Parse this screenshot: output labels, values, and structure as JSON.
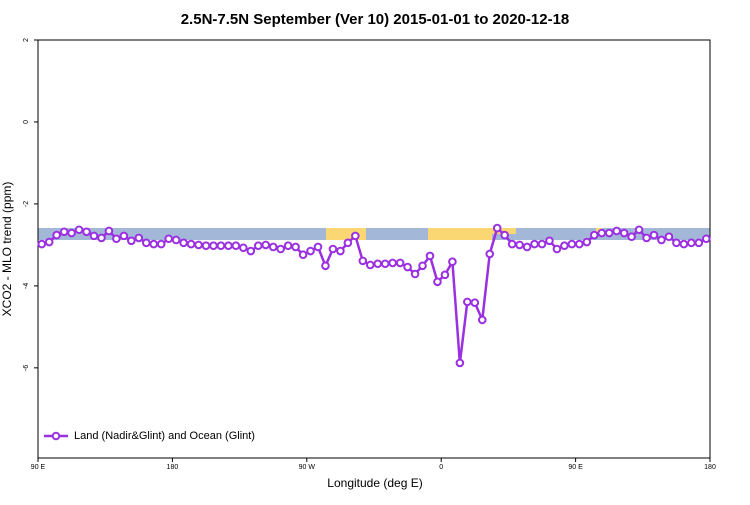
{
  "chart_data": {
    "type": "line",
    "title": "2.5N-7.5N September (Ver 10)   2015-01-01 to 2020-12-18",
    "x_label": "Longitude (deg E)",
    "y_label": "XCO2 - MLO trend (ppm)",
    "x": [
      92.5,
      97.5,
      102.5,
      107.5,
      112.5,
      117.5,
      122.5,
      127.5,
      132.5,
      137.5,
      142.5,
      147.5,
      152.5,
      157.5,
      162.5,
      167.5,
      172.5,
      177.5,
      182.5,
      187.5,
      192.5,
      197.5,
      202.5,
      207.5,
      212.5,
      217.5,
      222.5,
      227.5,
      232.5,
      237.5,
      242.5,
      247.5,
      252.5,
      257.5,
      262.5,
      267.5,
      272.5,
      277.5,
      282.5,
      287.5,
      292.5,
      297.5,
      302.5,
      307.5,
      312.5,
      317.5,
      322.5,
      327.5,
      332.5,
      337.5,
      342.5,
      347.5,
      352.5,
      357.5,
      362.5,
      367.5,
      372.5,
      377.5,
      382.5,
      387.5,
      392.5,
      397.5,
      402.5,
      407.5,
      412.5,
      417.5,
      422.5,
      427.5,
      432.5,
      437.5,
      442.5,
      447.5,
      452.5,
      457.5,
      462.5,
      467.5,
      472.5,
      477.5,
      482.5,
      487.5,
      492.5,
      497.5,
      502.5,
      507.5,
      512.5,
      517.5,
      522.5,
      527.5,
      532.5,
      537.5
    ],
    "series": [
      {
        "name": "Land (Nadir&Glint) and Ocean (Glint)",
        "color": "#9b30e0",
        "values": [
          -2.98,
          -2.93,
          -2.76,
          -2.68,
          -2.71,
          -2.63,
          -2.68,
          -2.78,
          -2.83,
          -2.66,
          -2.85,
          -2.78,
          -2.9,
          -2.83,
          -2.95,
          -2.98,
          -2.98,
          -2.85,
          -2.88,
          -2.95,
          -2.98,
          -3.0,
          -3.02,
          -3.02,
          -3.02,
          -3.02,
          -3.02,
          -3.07,
          -3.15,
          -3.02,
          -3.0,
          -3.05,
          -3.1,
          -3.02,
          -3.05,
          -3.24,
          -3.15,
          -3.05,
          -3.51,
          -3.1,
          -3.15,
          -2.95,
          -2.78,
          -3.39,
          -3.49,
          -3.46,
          -3.46,
          -3.44,
          -3.44,
          -3.54,
          -3.71,
          -3.51,
          -3.27,
          -3.9,
          -3.73,
          -3.41,
          -5.88,
          -4.39,
          -4.41,
          -4.83,
          -3.22,
          -2.59,
          -2.76,
          -2.98,
          -3.0,
          -3.05,
          -2.98,
          -2.98,
          -2.9,
          -3.1,
          -3.02,
          -2.98,
          -2.98,
          -2.93,
          -2.76,
          -2.71,
          -2.71,
          -2.66,
          -2.71,
          -2.8,
          -2.63,
          -2.83,
          -2.76,
          -2.88,
          -2.8,
          -2.95,
          -2.98,
          -2.95,
          -2.95,
          -2.85
        ]
      }
    ],
    "xlim": [
      90,
      540
    ],
    "xticks": [
      {
        "value": 90,
        "label": "90 E"
      },
      180,
      {
        "value": 270,
        "label": "90 W"
      },
      {
        "value": 360,
        "label": "0"
      },
      {
        "value": 450,
        "label": "90 E"
      },
      {
        "value": 540,
        "label": "180"
      }
    ],
    "ylim": [
      -8.2,
      2
    ],
    "yticks": [
      2,
      0,
      -2,
      -4,
      -6
    ],
    "legend": "bottom-left"
  }
}
